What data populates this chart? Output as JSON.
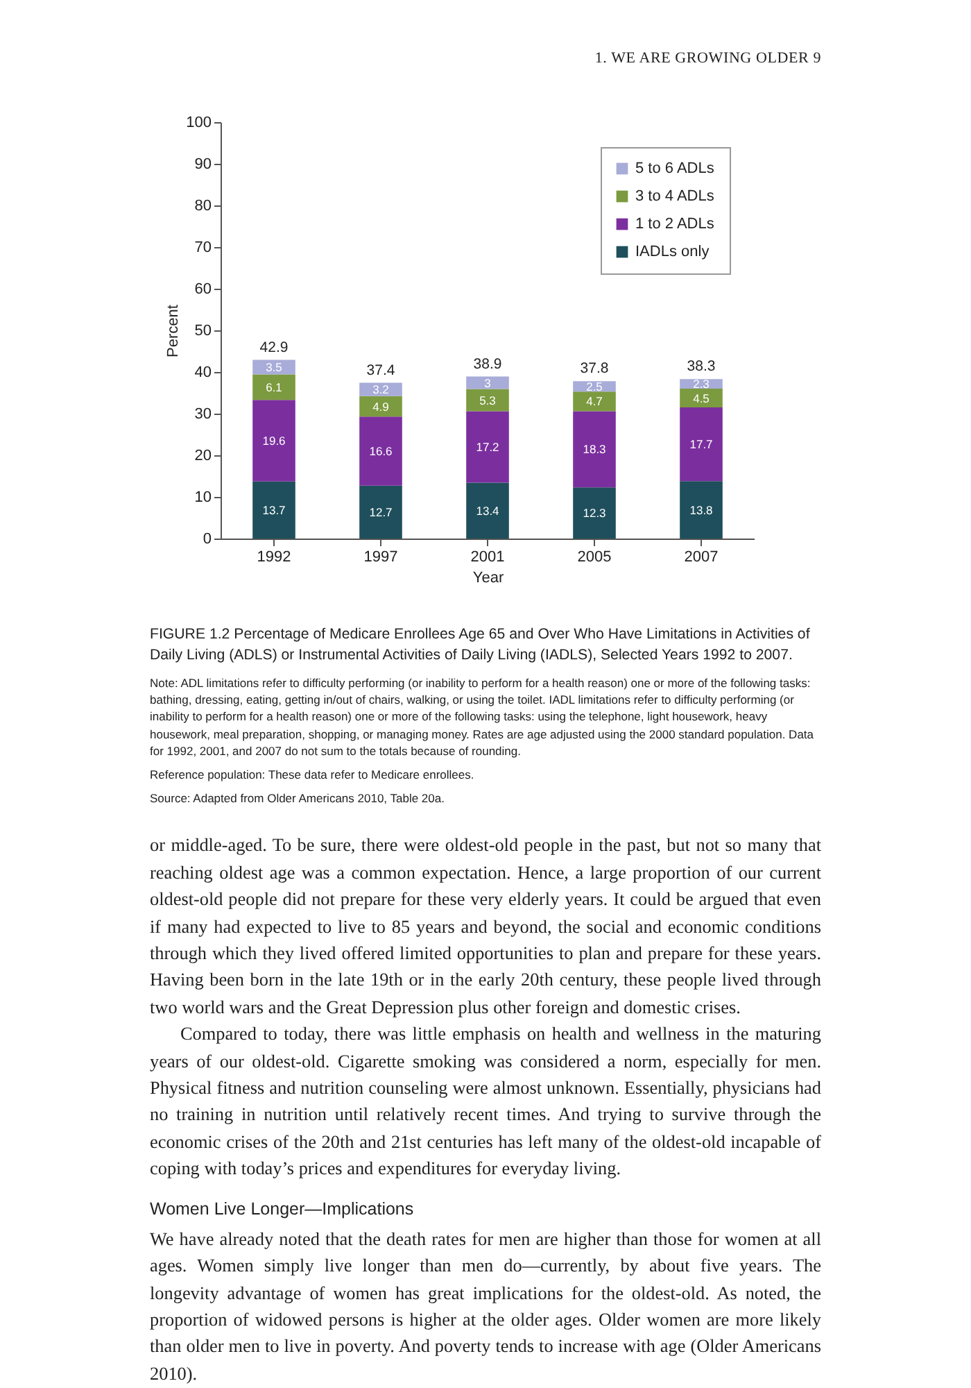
{
  "chart_data": {
    "type": "bar",
    "stacked": true,
    "title": "FIGURE 1.2 Percentage of Medicare Enrollees Age 65 and Over Who Have Limitations in Activities of Daily Living (ADLS) or Instrumental Activities of Daily Living (IADLS), Selected Years 1992 to 2007.",
    "xlabel": "Year",
    "ylabel": "Percent",
    "categories": [
      "1992",
      "1997",
      "2001",
      "2005",
      "2007"
    ],
    "series": [
      {
        "name": "IADLs only",
        "color": "#1f4f5c",
        "values": [
          13.7,
          12.7,
          13.4,
          12.3,
          13.8
        ]
      },
      {
        "name": "1 to 2 ADLs",
        "color": "#7b2f9e",
        "values": [
          19.6,
          16.6,
          17.2,
          18.3,
          17.7
        ]
      },
      {
        "name": "3 to 4 ADLs",
        "color": "#7c9a3f",
        "values": [
          6.1,
          4.9,
          5.3,
          4.7,
          4.5
        ]
      },
      {
        "name": "5 to 6 ADLs",
        "color": "#a8acd8",
        "values": [
          3.5,
          3.2,
          3,
          2.5,
          2.3
        ]
      }
    ],
    "totals": [
      "42.9",
      "37.4",
      "38.9",
      "37.8",
      "38.3"
    ],
    "data_labels": true,
    "legend": "top right",
    "grid": false,
    "ylim": [
      0,
      100
    ],
    "yticks": [
      0,
      10,
      20,
      30,
      40,
      50,
      60,
      70,
      80,
      90,
      100
    ],
    "annotations": [
      "1. WE ARE GROWING OLDER 9",
      "Note: ADL limitations refer to difficulty performing (or inability to perform for a health reason) one or more of the following tasks: bathing, dressing, eating, getting in/out of chairs, walking, or using the toilet. IADL limitations refer to difficulty performing (or inability to perform for a health reason) one or more of the following tasks: using the telephone, light housework, heavy housework, meal preparation, shopping, or managing money. Rates are age adjusted using the 2000 standard population. Data for 1992, 2001, and 2007 do not sum to the totals because of rounding.",
      "Reference population: These data refer to Medicare enrollees.",
      "Source: Adapted from Older Americans 2010, Table 20a.",
      "or middle-aged. To be sure, there were oldest-old people in the past, but not so many that reaching oldest age was a common expectation. Hence, a large proportion of our current oldest-old people did not prepare for these very elderly years. It could be argued that even if many had expected to live to 85 years and beyond, the social and economic conditions through which they lived offered limited opportunities to plan and prepare for these years. Having been born in the late 19th or in the early 20th century, these people lived through two world wars and the Great Depression plus other foreign and domestic crises.",
      "Compared to today, there was little emphasis on health and wellness in the maturing years of our oldest-old. Cigarette smoking was considered a norm, especially for men. Physical fitness and nutrition counseling were almost unknown. Essentially, physicians had no training in nutrition until relatively recent times. And trying to survive through the economic crises of the 20th and 21st centuries has left many of the oldest-old incapable of coping with today’s prices and expenditures for everyday living.",
      "Women Live Longer—Implications",
      "We have already noted that the death rates for men are higher than those for women at all ages. Women simply live longer than men do—currently, by about five years. The longevity advantage of women has great implications for the oldest-old. As noted, the proportion of widowed persons is higher at the older ages. Older women are more likely than older men to live in poverty. And poverty tends to increase with age (Older Americans 2010)."
    ]
  }
}
